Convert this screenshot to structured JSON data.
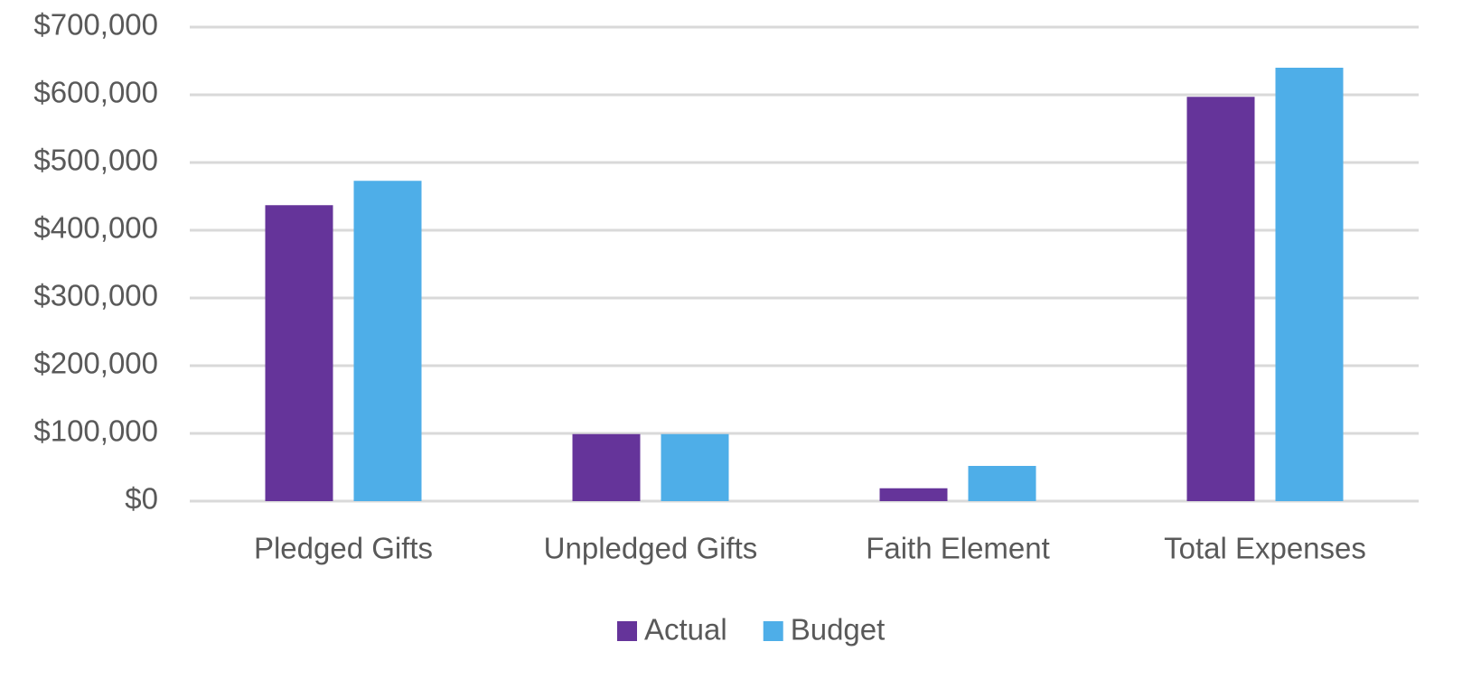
{
  "chart_data": {
    "type": "bar",
    "categories": [
      "Pledged Gifts",
      "Unpledged Gifts",
      "Faith Element",
      "Total Expenses"
    ],
    "series": [
      {
        "name": "Actual",
        "color": "#65349a",
        "values": [
          437000,
          99000,
          19000,
          597000
        ]
      },
      {
        "name": "Budget",
        "color": "#4eaee8",
        "values": [
          473000,
          99000,
          52000,
          640000
        ]
      }
    ],
    "ylim": [
      0,
      700000
    ],
    "yticks": [
      {
        "value": 0,
        "label": "$0"
      },
      {
        "value": 100000,
        "label": "$100,000"
      },
      {
        "value": 200000,
        "label": "$200,000"
      },
      {
        "value": 300000,
        "label": "$300,000"
      },
      {
        "value": 400000,
        "label": "$400,000"
      },
      {
        "value": 500000,
        "label": "$500,000"
      },
      {
        "value": 600000,
        "label": "$600,000"
      },
      {
        "value": 700000,
        "label": "$700,000"
      }
    ],
    "grid": true,
    "legend": "bottom"
  }
}
